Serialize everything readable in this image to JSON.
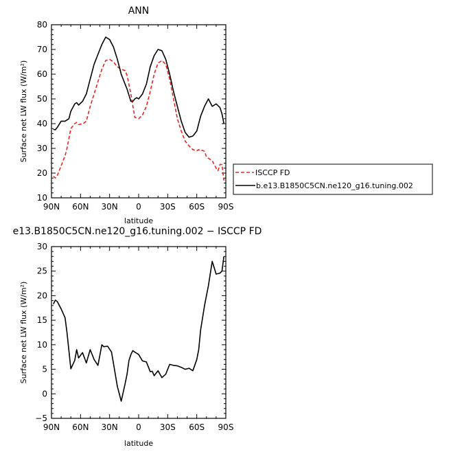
{
  "chart_data": [
    {
      "type": "line",
      "title": "ANN",
      "xlabel": "latitude",
      "ylabel": "Surface net LW flux (W/m²)",
      "xlim": [
        90,
        -90
      ],
      "ylim": [
        10,
        80
      ],
      "x_tick_labels": [
        "90N",
        "60N",
        "30N",
        "0",
        "30S",
        "60S",
        "90S"
      ],
      "x_tick_values": [
        90,
        60,
        30,
        0,
        -30,
        -60,
        -90
      ],
      "y_tick_values": [
        10,
        20,
        30,
        40,
        50,
        60,
        70,
        80
      ],
      "legend_position": "right",
      "series": [
        {
          "name": "ISCCP FD",
          "color": "#e8251e",
          "dash": "dashed",
          "x": [
            88,
            86,
            84,
            80,
            76,
            74,
            70,
            66,
            64,
            62,
            60,
            58,
            54,
            50,
            46,
            42,
            38,
            34,
            30,
            26,
            22,
            18,
            14,
            12,
            8,
            4,
            0,
            -4,
            -8,
            -12,
            -16,
            -20,
            -24,
            -28,
            -32,
            -36,
            -40,
            -44,
            -48,
            -52,
            -56,
            -60,
            -62,
            -64,
            -66,
            -68,
            -70,
            -72,
            -76,
            -80,
            -82,
            -84,
            -86,
            -88
          ],
          "y": [
            18.7,
            18.0,
            19.0,
            23.0,
            27.0,
            30.0,
            38.0,
            40.0,
            40.5,
            39.6,
            39.8,
            39.8,
            41.0,
            47.0,
            52.0,
            57.0,
            62.0,
            65.5,
            66.0,
            65.0,
            63.0,
            62.0,
            61.5,
            59.5,
            52.0,
            42.5,
            42.0,
            43.5,
            47.0,
            53.0,
            60.0,
            64.5,
            65.5,
            64.0,
            58.0,
            50.0,
            42.0,
            37.0,
            33.0,
            31.0,
            29.5,
            29.0,
            29.5,
            29.0,
            29.2,
            28.8,
            26.5,
            26.0,
            25.0,
            22.0,
            21.0,
            23.5,
            23.5,
            17.0
          ]
        },
        {
          "name": "b.e13.B1850C5CN.ne120_g16.tuning.002",
          "color": "#000000",
          "dash": "solid",
          "x": [
            88,
            86,
            84,
            80,
            76,
            72,
            70,
            66,
            64,
            62,
            58,
            54,
            50,
            46,
            42,
            38,
            34,
            30,
            28,
            26,
            22,
            18,
            14,
            12,
            8,
            6,
            4,
            2,
            0,
            -4,
            -8,
            -12,
            -16,
            -20,
            -24,
            -28,
            -32,
            -36,
            -40,
            -44,
            -48,
            -52,
            -56,
            -60,
            -62,
            -64,
            -68,
            -72,
            -76,
            -78,
            -80,
            -84,
            -86,
            -88
          ],
          "y": [
            37.7,
            37.5,
            38.5,
            41.0,
            41.0,
            42.0,
            45.0,
            48.0,
            48.5,
            47.5,
            49.0,
            52.0,
            58.0,
            64.0,
            68.0,
            72.0,
            75.0,
            74.0,
            72.5,
            71.0,
            66.0,
            60.0,
            56.0,
            54.0,
            49.0,
            49.0,
            50.0,
            50.5,
            50.0,
            52.0,
            56.0,
            63.0,
            67.5,
            70.0,
            69.5,
            66.0,
            60.0,
            53.0,
            47.0,
            41.0,
            36.5,
            34.5,
            35.0,
            37.0,
            40.0,
            43.0,
            47.0,
            50.0,
            47.0,
            47.5,
            48.0,
            46.5,
            44.0,
            40.0
          ]
        }
      ]
    },
    {
      "type": "line",
      "title": "e13.B1850C5CN.ne120_g16.tuning.002 − ISCCP FD",
      "xlabel": "latitude",
      "ylabel": "Surface net LW flux (W/m²)",
      "xlim": [
        90,
        -90
      ],
      "ylim": [
        -5,
        30
      ],
      "x_tick_labels": [
        "90N",
        "60N",
        "30N",
        "0",
        "30S",
        "60S",
        "90S"
      ],
      "x_tick_values": [
        90,
        60,
        30,
        0,
        -30,
        -60,
        -90
      ],
      "y_tick_values": [
        -5,
        0,
        5,
        10,
        15,
        20,
        25,
        30
      ],
      "series": [
        {
          "name": "",
          "color": "#000000",
          "dash": "solid",
          "x": [
            88,
            86,
            84,
            80,
            76,
            74,
            70,
            66,
            64,
            62,
            58,
            54,
            50,
            46,
            42,
            38,
            36,
            32,
            28,
            26,
            22,
            18,
            14,
            12,
            10,
            8,
            6,
            4,
            0,
            -4,
            -8,
            -12,
            -14,
            -16,
            -20,
            -24,
            -28,
            -32,
            -36,
            -40,
            -44,
            -48,
            -52,
            -56,
            -60,
            -62,
            -64,
            -68,
            -70,
            -72,
            -76,
            -80,
            -84,
            -86,
            -88
          ],
          "y": [
            18.3,
            19.1,
            18.8,
            17.3,
            15.5,
            12.5,
            5.1,
            6.8,
            9.0,
            7.3,
            8.4,
            6.3,
            9.0,
            7.0,
            5.8,
            10.0,
            9.6,
            9.7,
            8.5,
            6.2,
            1.5,
            -1.5,
            2.0,
            4.0,
            6.8,
            8.0,
            8.8,
            8.5,
            8.0,
            6.7,
            6.5,
            4.5,
            4.6,
            3.7,
            4.7,
            3.3,
            4.0,
            6.0,
            5.8,
            5.7,
            5.4,
            5.0,
            5.2,
            4.7,
            7.0,
            9.0,
            13.0,
            18.0,
            20.0,
            22.0,
            27.0,
            24.4,
            24.6,
            25.0,
            28.0
          ]
        }
      ]
    }
  ]
}
